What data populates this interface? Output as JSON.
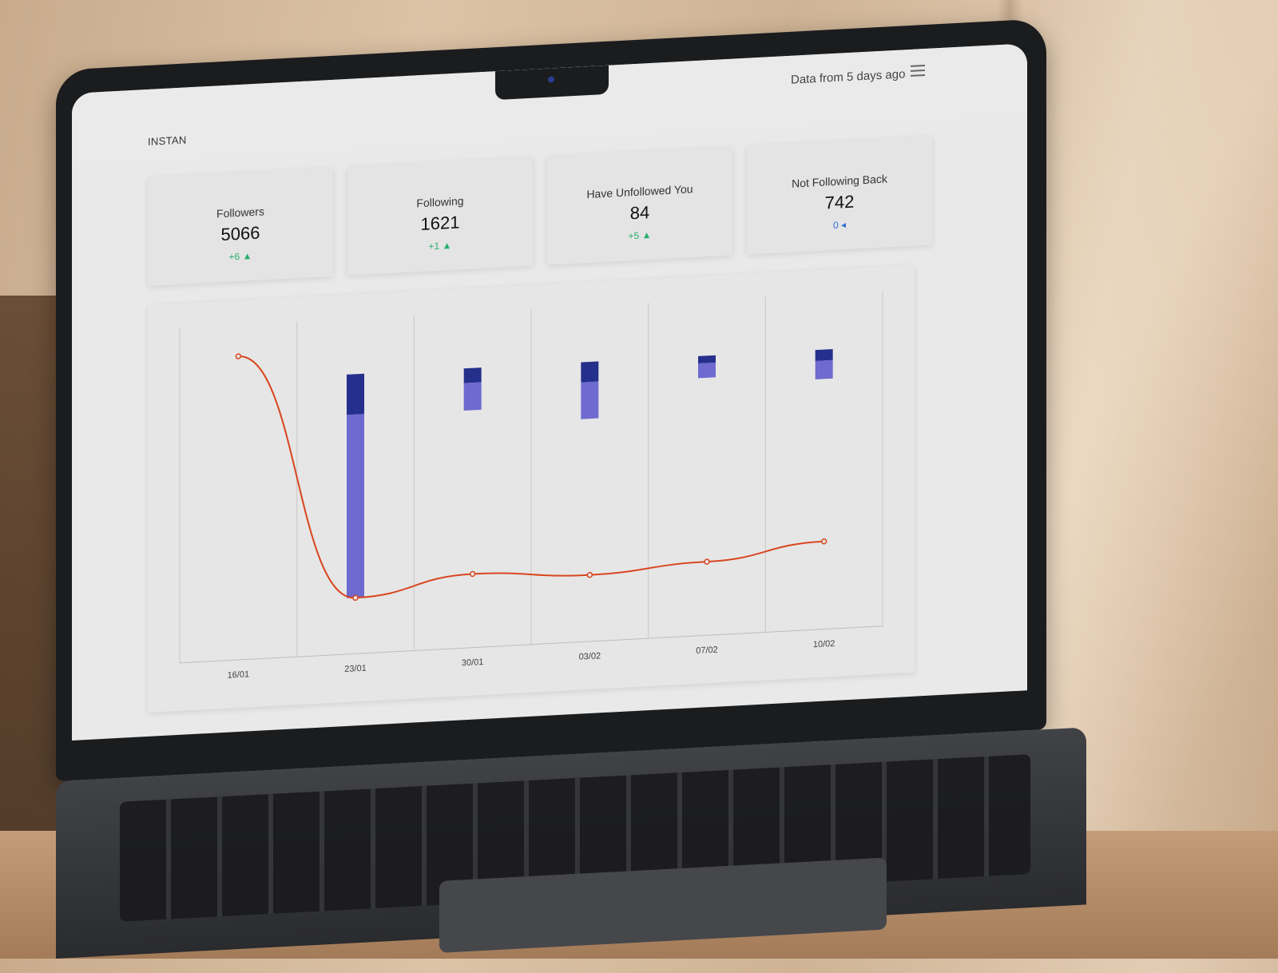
{
  "app": {
    "brand": "INSTAN",
    "status_text": "Data from 5 days ago",
    "menu_icon": "hamburger-menu-icon"
  },
  "stats": [
    {
      "label": "Followers",
      "value": "5066",
      "delta": "+6 ▲",
      "trend": "up"
    },
    {
      "label": "Following",
      "value": "1621",
      "delta": "+1 ▲",
      "trend": "up"
    },
    {
      "label": "Have Unfollowed You",
      "value": "84",
      "delta": "+5 ▲",
      "trend": "up"
    },
    {
      "label": "Not Following Back",
      "value": "742",
      "delta": "0 ◂",
      "trend": "neutral"
    }
  ],
  "colors": {
    "up": "#27b06c",
    "neutral": "#2f6fd6",
    "line": "#d9461f",
    "bar_dark": "#25308c",
    "bar_light": "#6e6ad0"
  },
  "chart_data": {
    "type": "bar+line",
    "categories": [
      "16/01",
      "23/01",
      "30/01",
      "03/02",
      "07/02",
      "10/02"
    ],
    "series": [
      {
        "values": [
          5060,
          4990,
          4995,
          4993,
          4995,
          4999
        ]
      },
      {
        "values": [
          0,
          22,
          8,
          11,
          4,
          6
        ]
      },
      {
        "values": [
          0,
          100,
          15,
          20,
          8,
          10
        ]
      }
    ],
    "grid": "vertical",
    "legend": "none"
  }
}
